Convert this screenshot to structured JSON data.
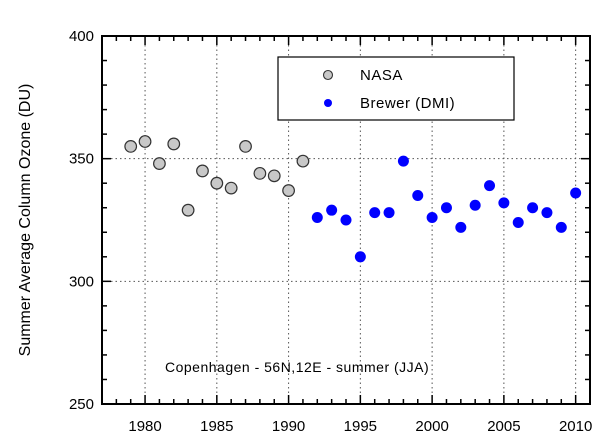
{
  "chart_data": {
    "type": "scatter",
    "title": "",
    "xlabel": "",
    "ylabel": "Summer Average Column Ozone (DU)",
    "annotation": "Copenhagen - 56N,12E - summer (JJA)",
    "xlim": [
      1977,
      2011
    ],
    "ylim": [
      250,
      400
    ],
    "xticks": [
      1980,
      1985,
      1990,
      1995,
      2000,
      2005,
      2010
    ],
    "yticks": [
      250,
      300,
      350,
      400
    ],
    "grid": true,
    "legend_position": "top-right",
    "series": [
      {
        "name": "NASA",
        "color": "#c8c8c8",
        "marker": "circle-outlined",
        "points": [
          {
            "x": 1979,
            "y": 355
          },
          {
            "x": 1980,
            "y": 357
          },
          {
            "x": 1981,
            "y": 348
          },
          {
            "x": 1982,
            "y": 356
          },
          {
            "x": 1983,
            "y": 329
          },
          {
            "x": 1984,
            "y": 345
          },
          {
            "x": 1985,
            "y": 340
          },
          {
            "x": 1986,
            "y": 338
          },
          {
            "x": 1987,
            "y": 355
          },
          {
            "x": 1988,
            "y": 344
          },
          {
            "x": 1989,
            "y": 343
          },
          {
            "x": 1990,
            "y": 337
          },
          {
            "x": 1991,
            "y": 349
          }
        ]
      },
      {
        "name": "Brewer (DMI)",
        "color": "#0000ff",
        "marker": "circle-filled",
        "points": [
          {
            "x": 1992,
            "y": 326
          },
          {
            "x": 1993,
            "y": 329
          },
          {
            "x": 1994,
            "y": 325
          },
          {
            "x": 1995,
            "y": 310
          },
          {
            "x": 1996,
            "y": 328
          },
          {
            "x": 1997,
            "y": 328
          },
          {
            "x": 1998,
            "y": 349
          },
          {
            "x": 1999,
            "y": 335
          },
          {
            "x": 2000,
            "y": 326
          },
          {
            "x": 2001,
            "y": 330
          },
          {
            "x": 2002,
            "y": 322
          },
          {
            "x": 2003,
            "y": 331
          },
          {
            "x": 2004,
            "y": 339
          },
          {
            "x": 2005,
            "y": 332
          },
          {
            "x": 2006,
            "y": 324
          },
          {
            "x": 2007,
            "y": 330
          },
          {
            "x": 2008,
            "y": 328
          },
          {
            "x": 2009,
            "y": 322
          },
          {
            "x": 2010,
            "y": 336
          }
        ]
      }
    ]
  }
}
